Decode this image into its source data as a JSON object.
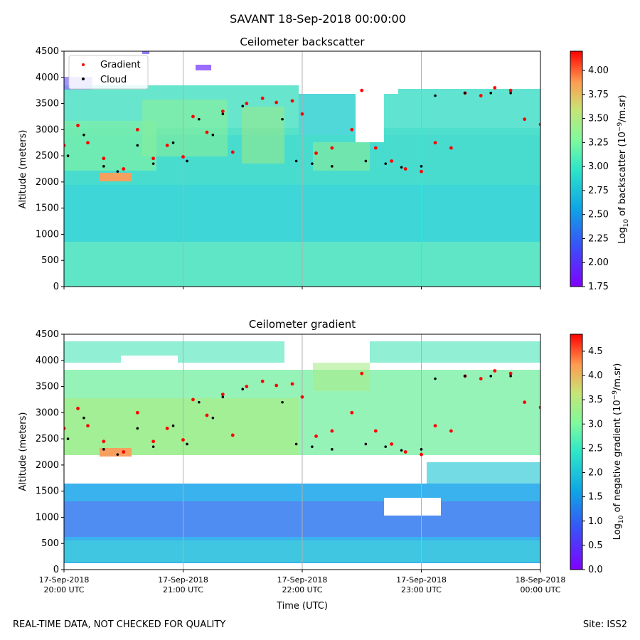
{
  "suptitle": "SAVANT 18-Sep-2018 00:00:00",
  "footer_left": "REAL-TIME DATA, NOT CHECKED FOR QUALITY",
  "footer_right": "Site: ISS2",
  "xlabel": "Time (UTC)",
  "x_ticks": [
    {
      "date": "17-Sep-2018",
      "time": "20:00 UTC"
    },
    {
      "date": "17-Sep-2018",
      "time": "21:00 UTC"
    },
    {
      "date": "17-Sep-2018",
      "time": "22:00 UTC"
    },
    {
      "date": "17-Sep-2018",
      "time": "23:00 UTC"
    },
    {
      "date": "18-Sep-2018",
      "time": "00:00 UTC"
    }
  ],
  "colors": {
    "gradient_marker": "#ff0000",
    "cloud_marker": "#000000",
    "colormap": "rainbow"
  },
  "chart_data": [
    {
      "type": "heatmap",
      "title": "Ceilometer backscatter",
      "ylabel": "Altitude (meters)",
      "y_ticks": [
        0,
        500,
        1000,
        1500,
        2000,
        2500,
        3000,
        3500,
        4000,
        4500
      ],
      "ylim": [
        0,
        4500
      ],
      "xlim": [
        "2018-09-17T20:00",
        "2018-09-18T00:00"
      ],
      "x_tick_labels_visible": false,
      "colorbar": {
        "label_prefix": "Log",
        "label_sub": "10",
        "label_mid": " of backscatter (10",
        "label_sup": "−9",
        "label_end": "/m.sr)",
        "range": [
          1.75,
          4.2
        ],
        "ticks": [
          "1.75",
          "2.00",
          "2.25",
          "2.50",
          "2.75",
          "3.00",
          "3.25",
          "3.50",
          "3.75",
          "4.00"
        ]
      },
      "legend": {
        "position": "top-left",
        "entries": [
          "Gradient",
          "Cloud"
        ]
      },
      "grid": "vertical",
      "series": [
        {
          "name": "Gradient",
          "points": [
            [
              "20:00",
              2700
            ],
            [
              "20:07",
              3080
            ],
            [
              "20:12",
              2750
            ],
            [
              "20:20",
              2450
            ],
            [
              "20:30",
              2250
            ],
            [
              "20:37",
              3000
            ],
            [
              "20:45",
              2450
            ],
            [
              "20:52",
              2700
            ],
            [
              "21:00",
              2480
            ],
            [
              "21:05",
              3250
            ],
            [
              "21:12",
              2950
            ],
            [
              "21:20",
              3350
            ],
            [
              "21:25",
              2570
            ],
            [
              "21:32",
              3500
            ],
            [
              "21:40",
              3600
            ],
            [
              "21:47",
              3520
            ],
            [
              "21:55",
              3550
            ],
            [
              "22:00",
              3300
            ],
            [
              "22:07",
              2550
            ],
            [
              "22:15",
              2650
            ],
            [
              "22:25",
              3000
            ],
            [
              "22:30",
              3750
            ],
            [
              "22:37",
              2650
            ],
            [
              "22:45",
              2400
            ],
            [
              "22:52",
              2250
            ],
            [
              "23:00",
              2200
            ],
            [
              "23:07",
              2750
            ],
            [
              "23:15",
              2650
            ],
            [
              "23:22",
              3700
            ],
            [
              "23:30",
              3650
            ],
            [
              "23:37",
              3800
            ],
            [
              "23:45",
              3750
            ],
            [
              "23:52",
              3200
            ],
            [
              "24:00",
              3100
            ]
          ]
        },
        {
          "name": "Cloud",
          "points": [
            [
              "20:02",
              2500
            ],
            [
              "20:10",
              2900
            ],
            [
              "20:20",
              2300
            ],
            [
              "20:27",
              2200
            ],
            [
              "20:37",
              2700
            ],
            [
              "20:45",
              2350
            ],
            [
              "20:55",
              2750
            ],
            [
              "21:02",
              2400
            ],
            [
              "21:08",
              3200
            ],
            [
              "21:15",
              2900
            ],
            [
              "21:20",
              3300
            ],
            [
              "21:30",
              3450
            ],
            [
              "21:50",
              3200
            ],
            [
              "21:57",
              2400
            ],
            [
              "22:05",
              2350
            ],
            [
              "22:15",
              2300
            ],
            [
              "22:32",
              2400
            ],
            [
              "22:42",
              2350
            ],
            [
              "22:50",
              2280
            ],
            [
              "23:00",
              2300
            ],
            [
              "23:07",
              3650
            ],
            [
              "23:22",
              3700
            ],
            [
              "23:35",
              3700
            ],
            [
              "23:45",
              3700
            ]
          ]
        }
      ]
    },
    {
      "type": "heatmap",
      "title": "Ceilometer gradient",
      "ylabel": "Altitude (meters)",
      "y_ticks": [
        0,
        500,
        1000,
        1500,
        2000,
        2500,
        3000,
        3500,
        4000,
        4500
      ],
      "ylim": [
        0,
        4500
      ],
      "xlim": [
        "2018-09-17T20:00",
        "2018-09-18T00:00"
      ],
      "x_tick_labels_visible": true,
      "colorbar": {
        "label_prefix": "Log",
        "label_sub": "10",
        "label_mid": " of negative gradient (10",
        "label_sup": "−9",
        "label_end": "/m.sr)",
        "range": [
          0.0,
          4.85
        ],
        "ticks": [
          "0.0",
          "0.5",
          "1.0",
          "1.5",
          "2.0",
          "2.5",
          "3.0",
          "3.5",
          "4.0",
          "4.5"
        ]
      },
      "grid": "vertical",
      "series": [
        {
          "name": "Gradient",
          "points": [
            [
              "20:00",
              2700
            ],
            [
              "20:07",
              3080
            ],
            [
              "20:12",
              2750
            ],
            [
              "20:20",
              2450
            ],
            [
              "20:30",
              2250
            ],
            [
              "20:37",
              3000
            ],
            [
              "20:45",
              2450
            ],
            [
              "20:52",
              2700
            ],
            [
              "21:00",
              2480
            ],
            [
              "21:05",
              3250
            ],
            [
              "21:12",
              2950
            ],
            [
              "21:20",
              3350
            ],
            [
              "21:25",
              2570
            ],
            [
              "21:32",
              3500
            ],
            [
              "21:40",
              3600
            ],
            [
              "21:47",
              3520
            ],
            [
              "21:55",
              3550
            ],
            [
              "22:00",
              3300
            ],
            [
              "22:07",
              2550
            ],
            [
              "22:15",
              2650
            ],
            [
              "22:25",
              3000
            ],
            [
              "22:30",
              3750
            ],
            [
              "22:37",
              2650
            ],
            [
              "22:45",
              2400
            ],
            [
              "22:52",
              2250
            ],
            [
              "23:00",
              2200
            ],
            [
              "23:07",
              2750
            ],
            [
              "23:15",
              2650
            ],
            [
              "23:22",
              3700
            ],
            [
              "23:30",
              3650
            ],
            [
              "23:37",
              3800
            ],
            [
              "23:45",
              3750
            ],
            [
              "23:52",
              3200
            ],
            [
              "24:00",
              3100
            ]
          ]
        },
        {
          "name": "Cloud",
          "points": [
            [
              "20:02",
              2500
            ],
            [
              "20:10",
              2900
            ],
            [
              "20:20",
              2300
            ],
            [
              "20:27",
              2200
            ],
            [
              "20:37",
              2700
            ],
            [
              "20:45",
              2350
            ],
            [
              "20:55",
              2750
            ],
            [
              "21:02",
              2400
            ],
            [
              "21:08",
              3200
            ],
            [
              "21:15",
              2900
            ],
            [
              "21:20",
              3300
            ],
            [
              "21:30",
              3450
            ],
            [
              "21:50",
              3200
            ],
            [
              "21:57",
              2400
            ],
            [
              "22:05",
              2350
            ],
            [
              "22:15",
              2300
            ],
            [
              "22:32",
              2400
            ],
            [
              "22:42",
              2350
            ],
            [
              "22:50",
              2280
            ],
            [
              "23:00",
              2300
            ],
            [
              "23:07",
              3650
            ],
            [
              "23:22",
              3700
            ],
            [
              "23:35",
              3700
            ],
            [
              "23:45",
              3700
            ]
          ]
        }
      ]
    }
  ]
}
